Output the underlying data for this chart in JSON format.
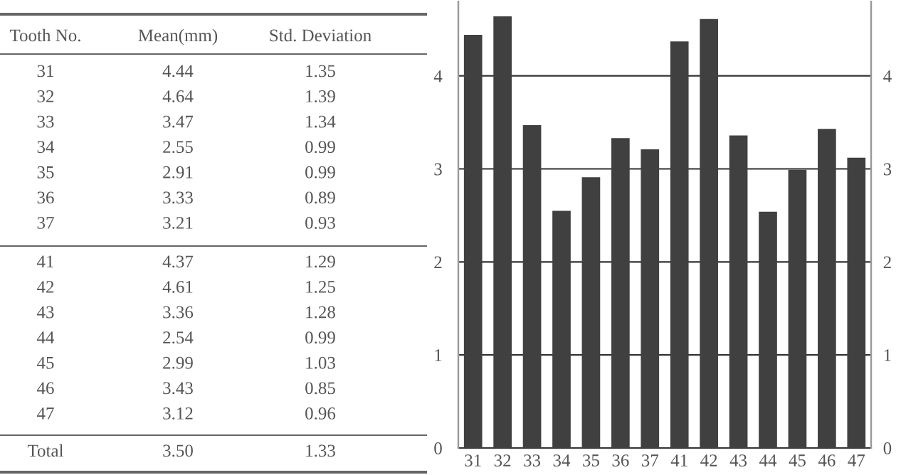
{
  "chart_data": [
    {
      "type": "other",
      "annotations": [
        "Tooth No.",
        "Mean(mm)",
        "Std. Deviation",
        "31",
        "4.44",
        "1.35",
        "32",
        "4.64",
        "1.39",
        "33",
        "3.47",
        "1.34",
        "34",
        "2.55",
        "0.99",
        "35",
        "2.91",
        "0.99",
        "36",
        "3.33",
        "0.89",
        "37",
        "3.21",
        "0.93",
        "41",
        "4.37",
        "1.29",
        "42",
        "4.61",
        "1.25",
        "43",
        "3.36",
        "1.28",
        "44",
        "2.54",
        "0.99",
        "45",
        "2.99",
        "1.03",
        "46",
        "3.43",
        "0.85",
        "47",
        "3.12",
        "0.96",
        "Total",
        "3.50",
        "1.33"
      ]
    },
    {
      "type": "bar",
      "categories": [
        "31",
        "32",
        "33",
        "34",
        "35",
        "36",
        "37",
        "41",
        "42",
        "43",
        "44",
        "45",
        "46",
        "47"
      ],
      "values": [
        4.44,
        4.64,
        3.47,
        2.55,
        2.91,
        3.33,
        3.21,
        4.37,
        4.61,
        3.36,
        2.54,
        2.99,
        3.43,
        3.12
      ],
      "color": "#404040",
      "ylim": [
        0,
        4.8
      ],
      "yticks": [
        0,
        1,
        2,
        3,
        4
      ],
      "y2lim": [
        0,
        4.8
      ],
      "y2ticks": [
        0,
        1,
        2,
        3,
        4
      ],
      "grid": true
    }
  ]
}
